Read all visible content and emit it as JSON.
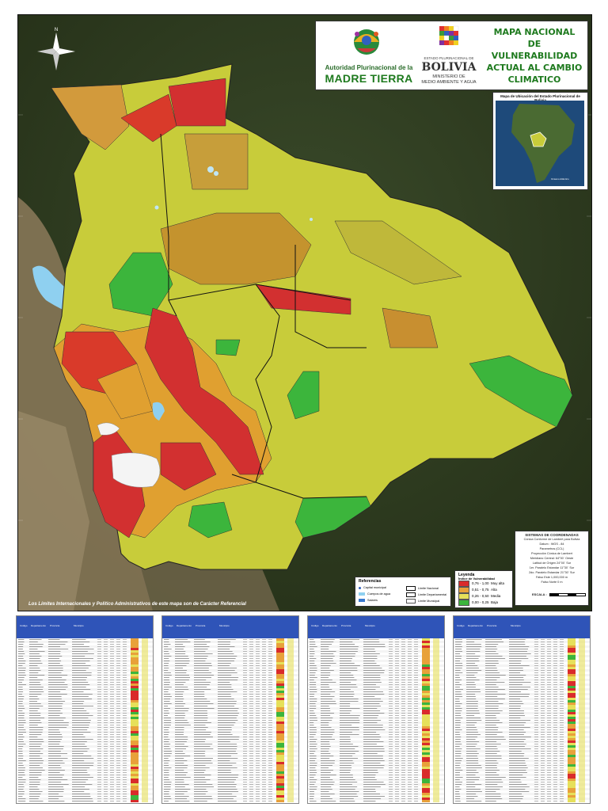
{
  "header": {
    "org_line1": "Autoridad Plurinacional de la",
    "org_line2": "MADRE TIERRA",
    "state_small": "ESTADO PLURINACIONAL DE",
    "country": "BOLIVIA",
    "ministry_line1": "MINISTERIO DE",
    "ministry_line2": "MEDIO AMBIENTE Y AGUA",
    "title_lines": [
      "MAPA NACIONAL",
      "DE",
      "VULNERABILIDAD",
      "ACTUAL AL CAMBIO",
      "CLIMATICO"
    ]
  },
  "inset": {
    "title": "Mapa de Ubicación del Estado Plurinacional de Bolivia"
  },
  "coordinates": {
    "title": "SISTEMAS DE COORDENADAS",
    "lines": [
      "Cónica Conforme de Lambert para Bolivia",
      "Datum : WGS - 84",
      "Parametros (CCL)",
      "Proyección Cónica de Lambert",
      "Meridiano Central: 64°00´ Oeste",
      "Latitud de Origen       24°00´ Sur",
      "1er. Paralelo Estandar    11°30´ Sur",
      "2do. Paralelo Estandar    21°30´ Sur",
      "Falso Este           1,000,000 m",
      "Falso Norte               0 m"
    ],
    "scale_label": "ESCALA :"
  },
  "legend": {
    "title": "Leyenda",
    "subtitle": "Índice de Vulnerabilidad",
    "items": [
      {
        "range": "0,76 - 1,00",
        "label": "Muy alta",
        "color": "#d92b2b"
      },
      {
        "range": "0,51 - 0,75",
        "label": "Alta",
        "color": "#e8a13a"
      },
      {
        "range": "0,26 - 0,50",
        "label": "Media",
        "color": "#e6e05a"
      },
      {
        "range": "0,00 - 0,25",
        "label": "Baja",
        "color": "#3cb53c"
      }
    ]
  },
  "references": {
    "title": "Referencias",
    "items": [
      {
        "label": "Capital municipal",
        "symbol": "dot"
      },
      {
        "label": "Limite Nacional",
        "symbol": "line-thick"
      },
      {
        "label": "Cuerpos de agua",
        "symbol": "water"
      },
      {
        "label": "Limite Departamental",
        "symbol": "line"
      },
      {
        "label": "Salares",
        "symbol": "salt"
      },
      {
        "label": "Limite Municipal",
        "symbol": "line-thin"
      }
    ]
  },
  "disclaimer": "Los Límites Internacionales y Político Administrativos de este mapa son de Carácter Referencial",
  "tables": {
    "column_headers": [
      "Código",
      "Departamento",
      "Provincia",
      "Municipio"
    ],
    "count": 4
  },
  "colors": {
    "very_high": "#d92b2b",
    "high": "#e8a13a",
    "medium": "#e6e05a",
    "low": "#3cb53c",
    "brand_green": "#1e7a1e",
    "table_header": "#2f54b8"
  }
}
